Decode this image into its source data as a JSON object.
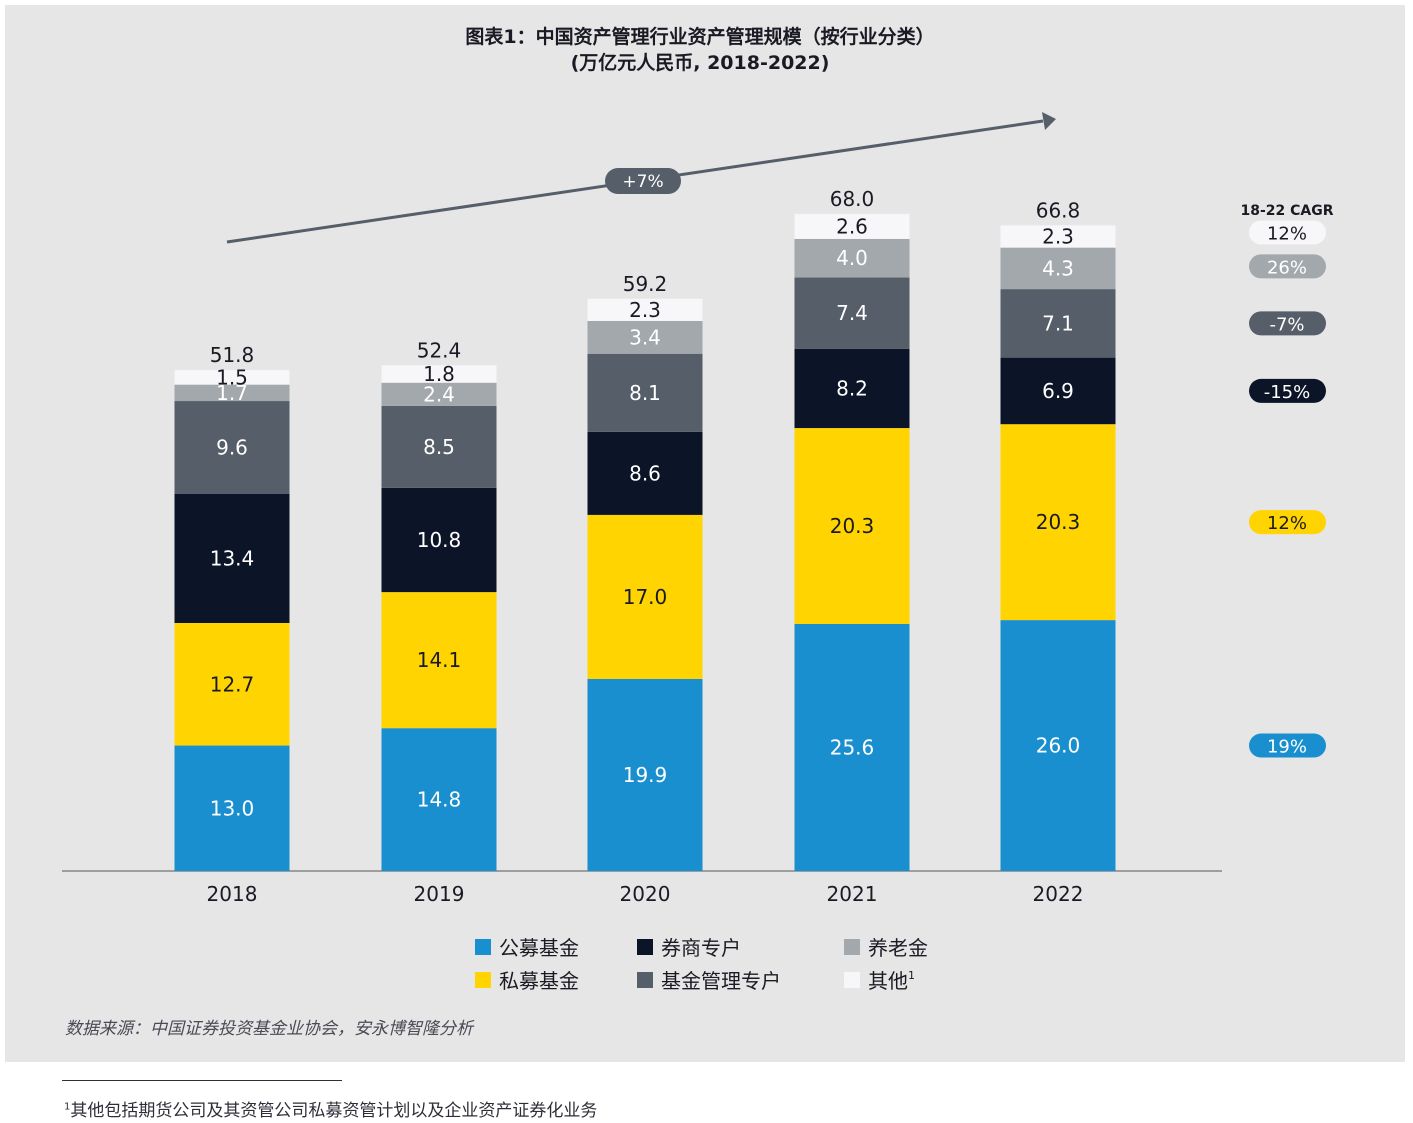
{
  "chart_data": {
    "type": "bar",
    "stacked": true,
    "title": "图表1：中国资产管理行业资产管理规模（按行业分类）",
    "subtitle": "(万亿元人民币, 2018-2022)",
    "categories": [
      "2018",
      "2019",
      "2020",
      "2021",
      "2022"
    ],
    "totals": [
      "51.8",
      "52.4",
      "59.2",
      "68.0",
      "66.8"
    ],
    "series": [
      {
        "name": "公募基金",
        "color": "#1a8fd0",
        "label_color": "#ffffff",
        "values": [
          13.0,
          14.8,
          19.9,
          25.6,
          26.0
        ],
        "cagr": "19%"
      },
      {
        "name": "私募基金",
        "color": "#ffd400",
        "label_color": "#1a1a24",
        "values": [
          12.7,
          14.1,
          17.0,
          20.3,
          20.3
        ],
        "cagr": "12%"
      },
      {
        "name": "券商专户",
        "color": "#0c1527",
        "label_color": "#ffffff",
        "values": [
          13.4,
          10.8,
          8.6,
          8.2,
          6.9
        ],
        "cagr": "-15%"
      },
      {
        "name": "基金管理专户",
        "color": "#565e69",
        "label_color": "#ffffff",
        "values": [
          9.6,
          8.5,
          8.1,
          7.4,
          7.1
        ],
        "cagr": "-7%"
      },
      {
        "name": "养老金",
        "color": "#a3a8ad",
        "label_color": "#ffffff",
        "values": [
          1.7,
          2.4,
          3.4,
          4.0,
          4.3
        ],
        "cagr": "26%"
      },
      {
        "name": "其他",
        "name_sup": "1",
        "color": "#f7f7f9",
        "label_color": "#1a1a24",
        "values": [
          1.5,
          1.8,
          2.3,
          2.6,
          2.3
        ],
        "cagr": "12%"
      }
    ],
    "cagr_header": "18-22 CAGR",
    "growth_label": "+7%",
    "ylim": [
      0,
      72
    ],
    "grid": false,
    "legend_position": "bottom",
    "source": "数据来源：中国证券投资基金业协会，安永博智隆分析"
  },
  "footnote": {
    "marker": "1",
    "text": "其他包括期货公司及其资管公司私募资管计划以及企业资产证券化业务"
  }
}
